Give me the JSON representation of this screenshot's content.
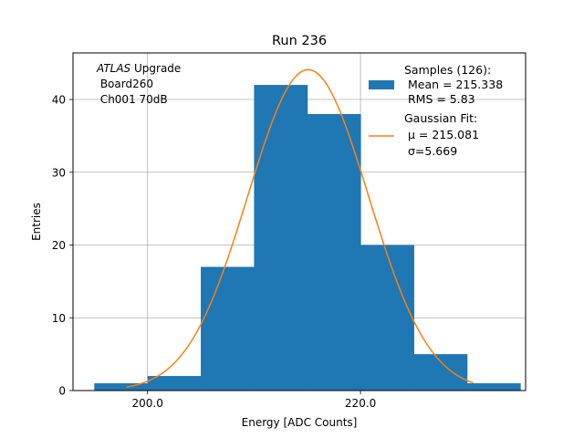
{
  "chart_data": {
    "type": "bar",
    "title": "Run 236",
    "xlabel": "Energy [ADC Counts]",
    "ylabel": "Entries",
    "xlim": [
      193.0,
      235.5
    ],
    "ylim": [
      0,
      46.4
    ],
    "grid": true,
    "x_ticks": [
      {
        "value": 200.0,
        "label": "200.0"
      },
      {
        "value": 220.0,
        "label": "220.0"
      }
    ],
    "y_ticks": [
      {
        "value": 0,
        "label": "0"
      },
      {
        "value": 10,
        "label": "10"
      },
      {
        "value": 20,
        "label": "20"
      },
      {
        "value": 30,
        "label": "30"
      },
      {
        "value": 40,
        "label": "40"
      }
    ],
    "histogram": {
      "name": "Samples (126)",
      "color": "#1f77b4",
      "bins": [
        {
          "lo": 195.0,
          "hi": 200.0,
          "count": 1
        },
        {
          "lo": 200.0,
          "hi": 205.0,
          "count": 2
        },
        {
          "lo": 205.0,
          "hi": 210.0,
          "count": 17
        },
        {
          "lo": 210.0,
          "hi": 215.0,
          "count": 42
        },
        {
          "lo": 215.0,
          "hi": 220.0,
          "count": 38
        },
        {
          "lo": 220.0,
          "hi": 225.0,
          "count": 20
        },
        {
          "lo": 225.0,
          "hi": 230.0,
          "count": 5
        },
        {
          "lo": 230.0,
          "hi": 235.0,
          "count": 1
        }
      ]
    },
    "fit": {
      "name": "Gaussian Fit",
      "color": "#ff7f0e",
      "mu": 215.081,
      "sigma": 5.669,
      "amplitude": 44.1,
      "x_range": [
        198.0,
        230.6
      ]
    },
    "legend": {
      "position": "top-right",
      "hist_lines": [
        "Samples (126):",
        " Mean = 215.338",
        " RMS = 5.83"
      ],
      "fit_lines": [
        "Gaussian Fit:",
        " μ = 215.081",
        " σ=5.669"
      ]
    },
    "annotation": {
      "position": "top-left",
      "italic": "ATLAS",
      "upgrade": " Upgrade",
      "line2": " Board260",
      "line3": " Ch001 70dB"
    }
  }
}
